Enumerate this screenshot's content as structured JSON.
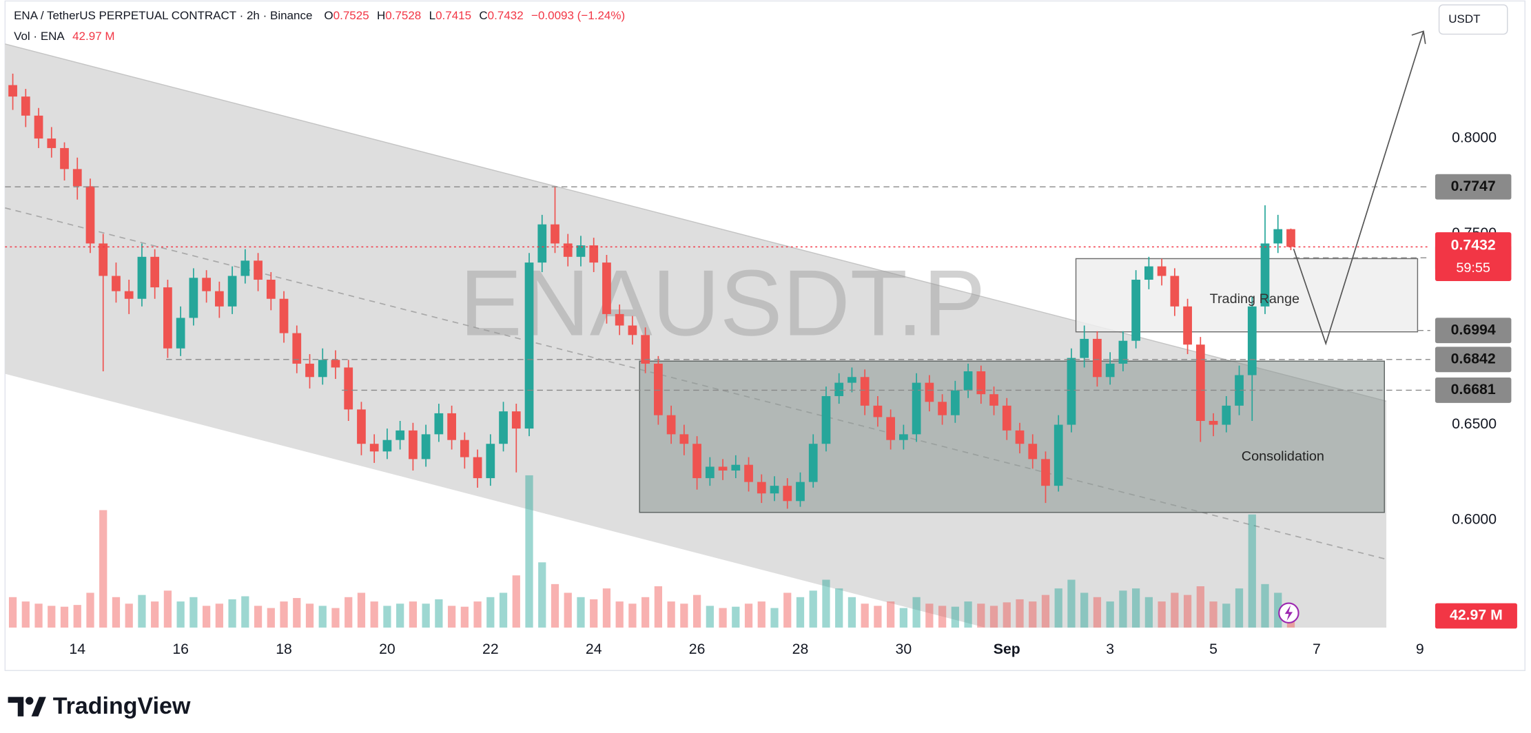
{
  "header": {
    "symbol": "ENA / TetherUS PERPETUAL CONTRACT · 2h · Binance",
    "quote": [
      {
        "label": "O",
        "value": "0.7525"
      },
      {
        "label": "H",
        "value": "0.7528"
      },
      {
        "label": "L",
        "value": "0.7415"
      },
      {
        "label": "C",
        "value": "0.7432"
      }
    ],
    "change": "−0.0093 (−1.24%)",
    "volume_title": "Vol · ENA"
  },
  "currency": "USDT",
  "watermark": "ENAUSDT.P",
  "footer": "TradingView",
  "chart_data": {
    "type": "candlestick",
    "x": [
      12.75,
      13,
      13.25,
      13.5,
      13.75,
      14,
      14.25,
      14.5,
      14.75,
      15,
      15.25,
      15.5,
      15.75,
      16,
      16.25,
      16.5,
      16.75,
      17,
      17.25,
      17.5,
      17.75,
      18,
      18.25,
      18.5,
      18.75,
      19,
      19.25,
      19.5,
      19.75,
      20,
      20.25,
      20.5,
      20.75,
      21,
      21.25,
      21.5,
      21.75,
      22,
      22.25,
      22.5,
      22.75,
      23,
      23.25,
      23.5,
      23.75,
      24,
      24.25,
      24.5,
      24.75,
      25,
      25.25,
      25.5,
      25.75,
      26,
      26.25,
      26.5,
      26.75,
      27,
      27.25,
      27.5,
      27.75,
      28,
      28.25,
      28.5,
      28.75,
      29,
      29.25,
      29.5,
      29.75,
      30,
      30.25,
      30.5,
      30.75,
      31,
      31.25,
      31.5,
      31.75,
      32,
      32.25,
      32.5,
      32.75,
      33,
      33.25,
      33.5,
      33.75,
      34,
      34.25,
      34.5,
      34.75,
      35,
      35.25,
      35.5,
      35.75,
      36,
      36.25,
      36.5,
      36.75,
      37,
      37.25,
      37.5
    ],
    "open": [
      0.828,
      0.822,
      0.812,
      0.8,
      0.795,
      0.784,
      0.775,
      0.745,
      0.728,
      0.72,
      0.716,
      0.738,
      0.722,
      0.69,
      0.706,
      0.727,
      0.72,
      0.712,
      0.728,
      0.736,
      0.726,
      0.716,
      0.698,
      0.682,
      0.675,
      0.684,
      0.68,
      0.658,
      0.64,
      0.636,
      0.642,
      0.647,
      0.632,
      0.645,
      0.656,
      0.642,
      0.633,
      0.622,
      0.64,
      0.657,
      0.648,
      0.735,
      0.755,
      0.745,
      0.738,
      0.744,
      0.735,
      0.708,
      0.702,
      0.697,
      0.682,
      0.655,
      0.645,
      0.64,
      0.622,
      0.628,
      0.626,
      0.629,
      0.62,
      0.614,
      0.618,
      0.61,
      0.62,
      0.64,
      0.665,
      0.672,
      0.675,
      0.66,
      0.654,
      0.642,
      0.645,
      0.672,
      0.662,
      0.655,
      0.668,
      0.678,
      0.666,
      0.66,
      0.647,
      0.64,
      0.632,
      0.618,
      0.65,
      0.685,
      0.695,
      0.675,
      0.682,
      0.694,
      0.726,
      0.733,
      0.728,
      0.712,
      0.692,
      0.652,
      0.65,
      0.66,
      0.676,
      0.712,
      0.745,
      0.7525
    ],
    "high": [
      0.834,
      0.826,
      0.816,
      0.806,
      0.798,
      0.79,
      0.779,
      0.75,
      0.735,
      0.726,
      0.745,
      0.742,
      0.726,
      0.712,
      0.732,
      0.731,
      0.725,
      0.733,
      0.742,
      0.74,
      0.73,
      0.72,
      0.702,
      0.687,
      0.69,
      0.689,
      0.684,
      0.662,
      0.645,
      0.648,
      0.652,
      0.651,
      0.65,
      0.661,
      0.66,
      0.646,
      0.637,
      0.645,
      0.662,
      0.661,
      0.74,
      0.76,
      0.775,
      0.75,
      0.749,
      0.748,
      0.739,
      0.713,
      0.707,
      0.701,
      0.686,
      0.66,
      0.65,
      0.644,
      0.633,
      0.632,
      0.634,
      0.633,
      0.624,
      0.623,
      0.622,
      0.625,
      0.645,
      0.67,
      0.677,
      0.68,
      0.679,
      0.665,
      0.658,
      0.65,
      0.677,
      0.676,
      0.666,
      0.673,
      0.682,
      0.681,
      0.67,
      0.664,
      0.651,
      0.645,
      0.636,
      0.655,
      0.69,
      0.702,
      0.699,
      0.688,
      0.699,
      0.731,
      0.738,
      0.737,
      0.732,
      0.716,
      0.696,
      0.656,
      0.665,
      0.681,
      0.717,
      0.765,
      0.76,
      0.7528
    ],
    "low": [
      0.815,
      0.806,
      0.795,
      0.79,
      0.778,
      0.768,
      0.74,
      0.678,
      0.714,
      0.708,
      0.712,
      0.716,
      0.685,
      0.686,
      0.702,
      0.714,
      0.706,
      0.708,
      0.724,
      0.72,
      0.71,
      0.693,
      0.677,
      0.669,
      0.671,
      0.674,
      0.652,
      0.634,
      0.63,
      0.632,
      0.637,
      0.626,
      0.628,
      0.641,
      0.637,
      0.627,
      0.617,
      0.618,
      0.636,
      0.625,
      0.644,
      0.73,
      0.74,
      0.733,
      0.733,
      0.73,
      0.703,
      0.697,
      0.692,
      0.677,
      0.65,
      0.64,
      0.634,
      0.616,
      0.618,
      0.621,
      0.622,
      0.615,
      0.609,
      0.61,
      0.606,
      0.607,
      0.617,
      0.636,
      0.661,
      0.667,
      0.655,
      0.649,
      0.637,
      0.637,
      0.641,
      0.657,
      0.65,
      0.651,
      0.664,
      0.661,
      0.655,
      0.642,
      0.635,
      0.627,
      0.609,
      0.615,
      0.646,
      0.68,
      0.67,
      0.671,
      0.678,
      0.69,
      0.721,
      0.723,
      0.707,
      0.687,
      0.641,
      0.644,
      0.646,
      0.655,
      0.652,
      0.708,
      0.74,
      0.7415
    ],
    "close": [
      0.822,
      0.812,
      0.8,
      0.795,
      0.784,
      0.775,
      0.745,
      0.728,
      0.72,
      0.716,
      0.738,
      0.722,
      0.69,
      0.706,
      0.727,
      0.72,
      0.712,
      0.728,
      0.736,
      0.726,
      0.716,
      0.698,
      0.682,
      0.675,
      0.684,
      0.68,
      0.658,
      0.64,
      0.636,
      0.642,
      0.647,
      0.632,
      0.645,
      0.656,
      0.642,
      0.633,
      0.622,
      0.64,
      0.657,
      0.648,
      0.735,
      0.755,
      0.745,
      0.738,
      0.744,
      0.735,
      0.708,
      0.702,
      0.697,
      0.682,
      0.655,
      0.645,
      0.64,
      0.622,
      0.628,
      0.626,
      0.629,
      0.62,
      0.614,
      0.618,
      0.61,
      0.62,
      0.64,
      0.665,
      0.672,
      0.675,
      0.66,
      0.654,
      0.642,
      0.645,
      0.672,
      0.662,
      0.655,
      0.668,
      0.678,
      0.666,
      0.66,
      0.647,
      0.64,
      0.632,
      0.618,
      0.65,
      0.685,
      0.695,
      0.675,
      0.682,
      0.694,
      0.726,
      0.733,
      0.728,
      0.712,
      0.692,
      0.652,
      0.65,
      0.66,
      0.676,
      0.712,
      0.745,
      0.7525,
      0.7432
    ],
    "volume": {
      "values": [
        70,
        60,
        55,
        50,
        48,
        52,
        80,
        270,
        70,
        55,
        75,
        60,
        85,
        60,
        70,
        50,
        55,
        65,
        72,
        50,
        45,
        60,
        68,
        55,
        50,
        45,
        70,
        80,
        60,
        50,
        55,
        60,
        55,
        65,
        50,
        48,
        60,
        70,
        80,
        120,
        350,
        150,
        100,
        80,
        70,
        65,
        90,
        60,
        55,
        70,
        95,
        60,
        55,
        75,
        50,
        45,
        48,
        55,
        60,
        45,
        80,
        70,
        85,
        110,
        90,
        70,
        55,
        50,
        60,
        45,
        70,
        55,
        50,
        48,
        60,
        55,
        50,
        58,
        65,
        60,
        75,
        90,
        110,
        80,
        70,
        60,
        85,
        90,
        70,
        60,
        80,
        75,
        95,
        60,
        55,
        90,
        260,
        100,
        80,
        42.97
      ],
      "last_label": "42.97 M"
    },
    "countdown": "59:55",
    "xlim": [
      12.6,
      40.2
    ],
    "ylim": [
      0.5222,
      0.8726
    ],
    "xticks": [
      14,
      16,
      18,
      20,
      22,
      24,
      26,
      28,
      30,
      {
        "value": 32,
        "label": "Sep"
      },
      {
        "value": 34,
        "label": "3"
      },
      {
        "value": 36,
        "label": "5"
      },
      {
        "value": 38,
        "label": "7"
      },
      {
        "value": 40,
        "label": "9"
      }
    ],
    "yticks": [
      {
        "value": 0.8,
        "label": "0.8000"
      },
      {
        "value": 0.75,
        "label": "0.7500"
      },
      {
        "value": 0.65,
        "label": "0.6500"
      },
      {
        "value": 0.6,
        "label": "0.6000"
      }
    ],
    "levels": [
      0.7747,
      0.7375,
      0.6994,
      0.6842,
      0.6681
    ],
    "annotations": [
      "Trading Range",
      "Consolidation"
    ],
    "up_color": "#26a69a",
    "down_color": "#ef5350"
  }
}
